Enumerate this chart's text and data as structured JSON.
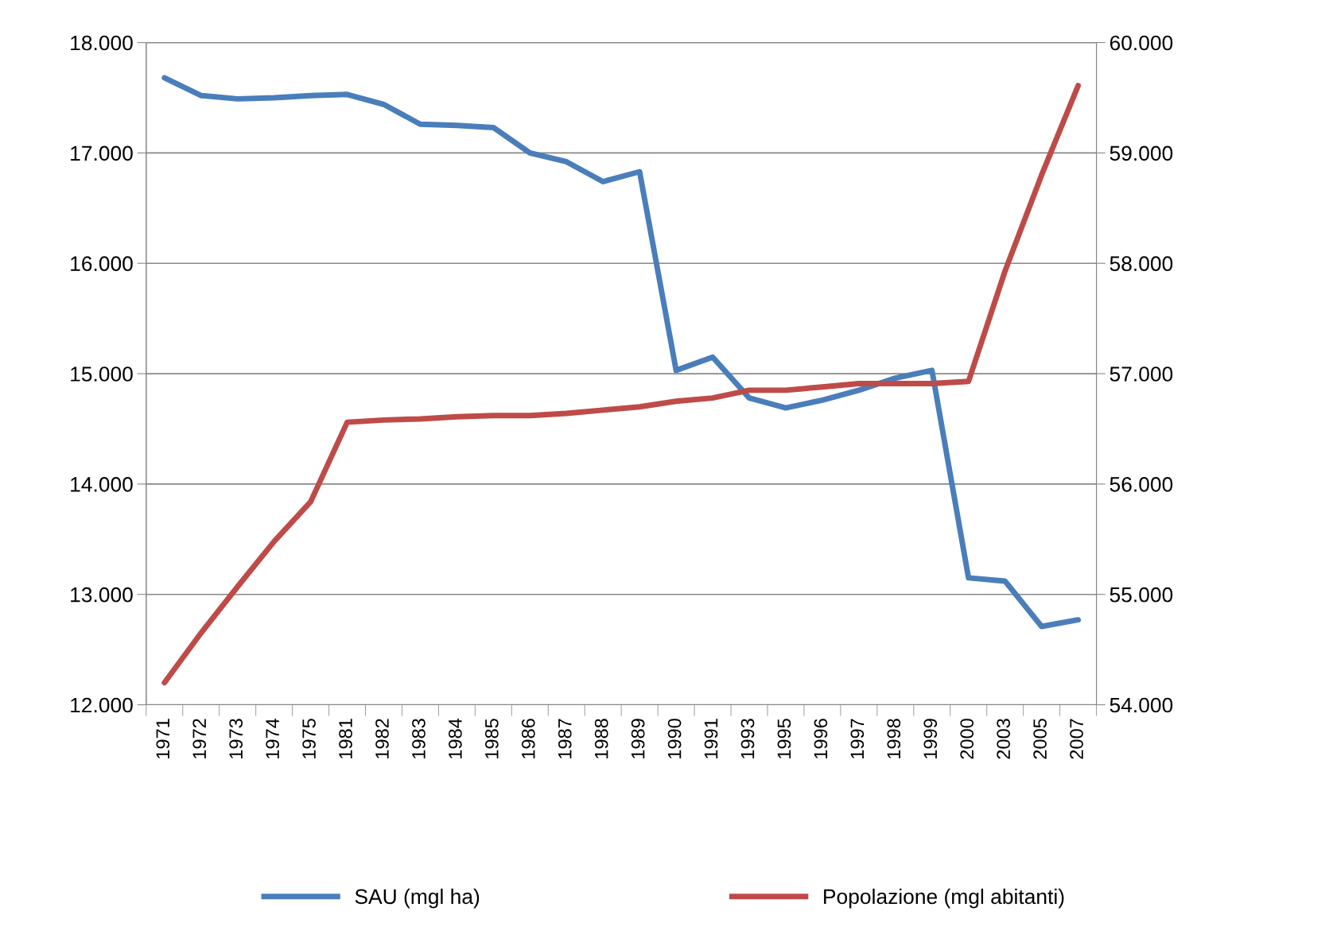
{
  "chart_data": {
    "type": "line",
    "categories": [
      "1971",
      "1972",
      "1973",
      "1974",
      "1975",
      "1981",
      "1982",
      "1983",
      "1984",
      "1985",
      "1986",
      "1987",
      "1988",
      "1989",
      "1990",
      "1991",
      "1993",
      "1995",
      "1996",
      "1997",
      "1998",
      "1999",
      "2000",
      "2003",
      "2005",
      "2007"
    ],
    "series": [
      {
        "name": "SAU (mgl ha)",
        "color": "#4a7ebb",
        "values": [
          17680,
          17520,
          17490,
          17500,
          17520,
          17530,
          17440,
          17260,
          17250,
          17230,
          17000,
          16920,
          16740,
          16830,
          15030,
          15150,
          14780,
          14690,
          14760,
          14850,
          14960,
          15030,
          13150,
          13120,
          12710,
          12770
        ]
      },
      {
        "name": "Popolazione (mgl abitanti)",
        "color": "#be4b48",
        "axis": "y2",
        "values": [
          54200,
          54650,
          55070,
          55480,
          55840,
          56560,
          56580,
          56590,
          56610,
          56620,
          56620,
          56640,
          56670,
          56700,
          56750,
          56780,
          56850,
          56850,
          56880,
          56910,
          56910,
          56910,
          56930,
          57930,
          58800,
          59610
        ]
      }
    ],
    "ylim": [
      12000,
      18000
    ],
    "yticks": [
      {
        "value": 12000,
        "label": "12.000"
      },
      {
        "value": 13000,
        "label": "13.000"
      },
      {
        "value": 14000,
        "label": "14.000"
      },
      {
        "value": 15000,
        "label": "15.000"
      },
      {
        "value": 16000,
        "label": "16.000"
      },
      {
        "value": 17000,
        "label": "17.000"
      },
      {
        "value": 18000,
        "label": "18.000"
      }
    ],
    "y2lim": [
      54000,
      60000
    ],
    "y2ticks": [
      {
        "value": 54000,
        "label": "54.000"
      },
      {
        "value": 55000,
        "label": "55.000"
      },
      {
        "value": 56000,
        "label": "56.000"
      },
      {
        "value": 57000,
        "label": "57.000"
      },
      {
        "value": 58000,
        "label": "58.000"
      },
      {
        "value": 59000,
        "label": "59.000"
      },
      {
        "value": 60000,
        "label": "60.000"
      }
    ],
    "grid": "y",
    "legend": "bottom",
    "marker": "none",
    "line_style": "solid"
  }
}
